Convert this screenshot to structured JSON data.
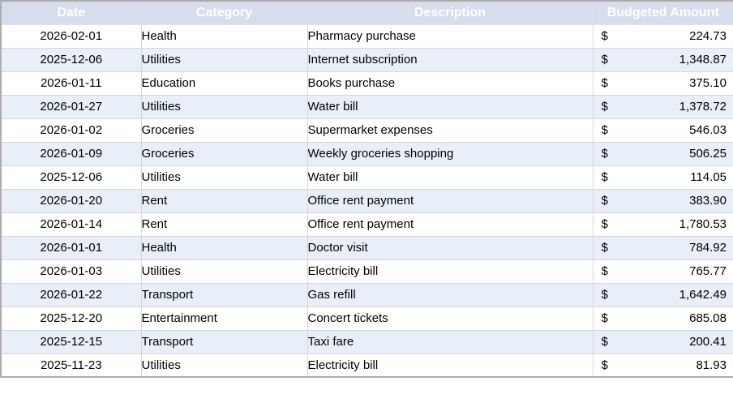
{
  "table": {
    "columns": [
      {
        "label": "Date"
      },
      {
        "label": "Category"
      },
      {
        "label": "Description"
      },
      {
        "label": "Budgeted Amount"
      }
    ],
    "currency_symbol": "$",
    "rows": [
      {
        "date": "2026-02-01",
        "category": "Health",
        "description": "Pharmacy purchase",
        "amount": "224.73"
      },
      {
        "date": "2025-12-06",
        "category": "Utilities",
        "description": "Internet subscription",
        "amount": "1,348.87"
      },
      {
        "date": "2026-01-11",
        "category": "Education",
        "description": "Books purchase",
        "amount": "375.10"
      },
      {
        "date": "2026-01-27",
        "category": "Utilities",
        "description": "Water bill",
        "amount": "1,378.72"
      },
      {
        "date": "2026-01-02",
        "category": "Groceries",
        "description": "Supermarket expenses",
        "amount": "546.03"
      },
      {
        "date": "2026-01-09",
        "category": "Groceries",
        "description": "Weekly groceries shopping",
        "amount": "506.25"
      },
      {
        "date": "2025-12-06",
        "category": "Utilities",
        "description": "Water bill",
        "amount": "114.05"
      },
      {
        "date": "2026-01-20",
        "category": "Rent",
        "description": "Office rent payment",
        "amount": "383.90"
      },
      {
        "date": "2026-01-14",
        "category": "Rent",
        "description": "Office rent payment",
        "amount": "1,780.53"
      },
      {
        "date": "2026-01-01",
        "category": "Health",
        "description": "Doctor visit",
        "amount": "784.92"
      },
      {
        "date": "2026-01-03",
        "category": "Utilities",
        "description": "Electricity bill",
        "amount": "765.77"
      },
      {
        "date": "2026-01-22",
        "category": "Transport",
        "description": "Gas refill",
        "amount": "1,642.49"
      },
      {
        "date": "2025-12-20",
        "category": "Entertainment",
        "description": "Concert tickets",
        "amount": "685.08"
      },
      {
        "date": "2025-12-15",
        "category": "Transport",
        "description": "Taxi fare",
        "amount": "200.41"
      },
      {
        "date": "2025-11-23",
        "category": "Utilities",
        "description": "Electricity bill",
        "amount": "81.93"
      }
    ]
  },
  "colors": {
    "header_bg": "#d8ddee",
    "header_text": "#ffffff",
    "band_row_bg": "#e9eff8",
    "row_bg": "#ffffff",
    "grid_line": "#d6d6d6",
    "outer_border": "#adadad",
    "body_text": "#000000"
  }
}
